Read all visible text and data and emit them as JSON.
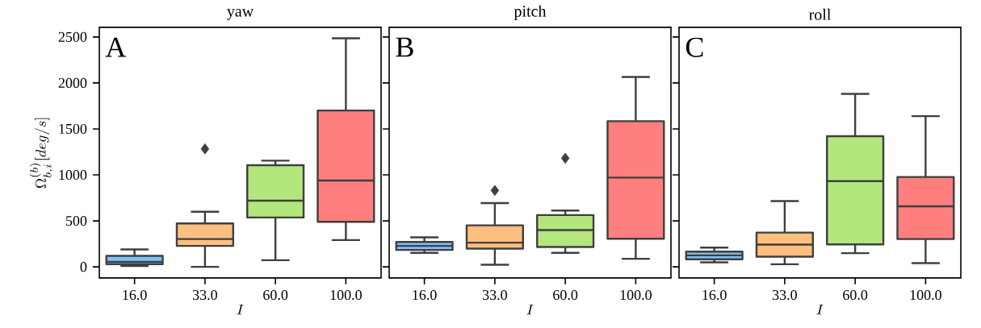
{
  "chart_data": [
    {
      "type": "box",
      "title": "yaw",
      "xlabel": "I",
      "ylabel": "\\Omega_{b,i}^{(b)}[deg/s]",
      "categories": [
        "16.0",
        "33.0",
        "60.0",
        "100.0"
      ],
      "colors": [
        "#80c0ff",
        "#ffbf7f",
        "#b3e67c",
        "#ff7f7f"
      ],
      "ylim": [
        -120,
        2605
      ],
      "yticks": [
        0,
        500,
        1000,
        1500,
        2000,
        2500
      ],
      "annotations": [
        "A"
      ],
      "boxes": [
        {
          "low": 10,
          "q1": 30,
          "median": 55,
          "q3": 120,
          "high": 190
        },
        {
          "low": 0,
          "q1": 228,
          "median": 303,
          "q3": 473,
          "high": 600,
          "outliers": [
            1283
          ]
        },
        {
          "low": 73,
          "q1": 537,
          "median": 720,
          "q3": 1105,
          "high": 1155
        },
        {
          "low": 292,
          "q1": 490,
          "median": 939,
          "q3": 1700,
          "high": 2485
        }
      ]
    },
    {
      "type": "box",
      "title": "pitch",
      "xlabel": "I",
      "categories": [
        "16.0",
        "33.0",
        "60.0",
        "100.0"
      ],
      "colors": [
        "#80c0ff",
        "#ffbf7f",
        "#b3e67c",
        "#ff7f7f"
      ],
      "ylim": [
        -120,
        2605
      ],
      "yticks": [
        0,
        500,
        1000,
        1500,
        2000,
        2500
      ],
      "tick_labels": "x",
      "annotations": [
        "B"
      ],
      "boxes": [
        {
          "low": 152,
          "q1": 184,
          "median": 228,
          "q3": 271,
          "high": 321
        },
        {
          "low": 23,
          "q1": 198,
          "median": 263,
          "q3": 452,
          "high": 694,
          "outliers": [
            831
          ]
        },
        {
          "low": 152,
          "q1": 216,
          "median": 400,
          "q3": 563,
          "high": 613,
          "outliers": [
            1181
          ]
        },
        {
          "low": 88,
          "q1": 306,
          "median": 971,
          "q3": 1584,
          "high": 2065
        }
      ]
    },
    {
      "type": "box",
      "title": "roll",
      "xlabel": "I",
      "categories": [
        "16.0",
        "33.0",
        "60.0",
        "100.0"
      ],
      "colors": [
        "#80c0ff",
        "#ffbf7f",
        "#b3e67c",
        "#ff7f7f"
      ],
      "ylim": [
        -120,
        2605
      ],
      "yticks": [
        0,
        500,
        1000,
        1500,
        2000,
        2500
      ],
      "tick_labels": "x",
      "annotations": [
        "C"
      ],
      "boxes": [
        {
          "low": 50,
          "q1": 82,
          "median": 125,
          "q3": 166,
          "high": 210
        },
        {
          "low": 29,
          "q1": 111,
          "median": 242,
          "q3": 373,
          "high": 715
        },
        {
          "low": 149,
          "q1": 245,
          "median": 933,
          "q3": 1421,
          "high": 1881
        },
        {
          "low": 41,
          "q1": 303,
          "median": 659,
          "q3": 977,
          "high": 1639
        }
      ]
    }
  ]
}
